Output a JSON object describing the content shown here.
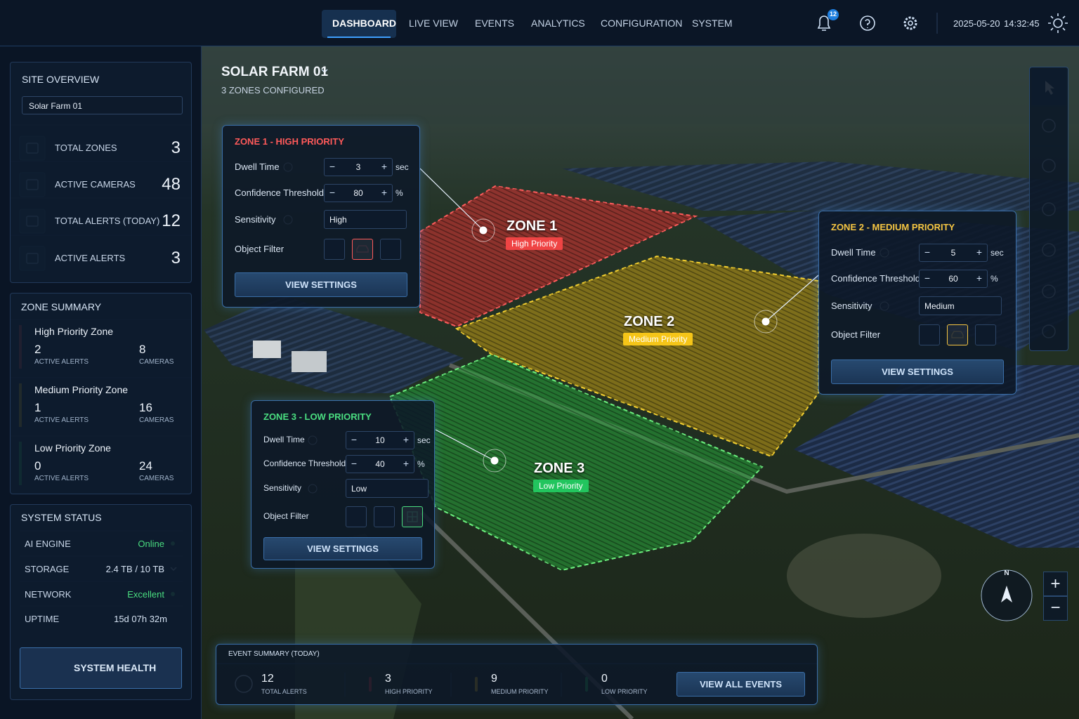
{
  "nav": {
    "items": [
      "DASHBOARD",
      "LIVE VIEW",
      "EVENTS",
      "ANALYTICS",
      "CONFIGURATION",
      "SYSTEM"
    ],
    "notifications": 12,
    "date": "2025-05-20",
    "time": "14:32:45"
  },
  "site_overview": {
    "title": "SITE OVERVIEW",
    "selected": "Solar Farm 01",
    "stats": [
      {
        "label": "TOTAL ZONES",
        "value": 3
      },
      {
        "label": "ACTIVE CAMERAS",
        "value": 48
      },
      {
        "label": "TOTAL ALERTS (TODAY)",
        "value": 12
      },
      {
        "label": "ACTIVE ALERTS",
        "value": 3
      }
    ]
  },
  "zone_summary": {
    "title": "ZONE SUMMARY",
    "zones": [
      {
        "name": "High Priority Zone",
        "color": "#ef4444",
        "alerts": 2,
        "alerts_label": "ACTIVE ALERTS",
        "cameras": 8,
        "cameras_label": "CAMERAS"
      },
      {
        "name": "Medium Priority Zone",
        "color": "#f5c518",
        "alerts": 1,
        "alerts_label": "ACTIVE ALERTS",
        "cameras": 16,
        "cameras_label": "CAMERAS"
      },
      {
        "name": "Low Priority Zone",
        "color": "#22c55e",
        "alerts": 0,
        "alerts_label": "ACTIVE ALERTS",
        "cameras": 24,
        "cameras_label": "CAMERAS"
      }
    ]
  },
  "system_status": {
    "title": "SYSTEM STATUS",
    "rows": [
      {
        "label": "AI ENGINE",
        "value": "Online"
      },
      {
        "label": "STORAGE",
        "value": "2.4 TB / 10 TB"
      },
      {
        "label": "NETWORK",
        "value": "Excellent"
      },
      {
        "label": "UPTIME",
        "value": "15d 07h 32m"
      }
    ],
    "button": "SYSTEM HEALTH"
  },
  "map": {
    "site": "SOLAR FARM 01",
    "subtitle": "3 ZONES CONFIGURED",
    "compass": "N",
    "zones": [
      {
        "label": "ZONE 1",
        "badge": "High Priority",
        "color": "#ef4444"
      },
      {
        "label": "ZONE 2",
        "badge": "Medium Priority",
        "color": "#f5c518"
      },
      {
        "label": "ZONE 3",
        "badge": "Low Priority",
        "color": "#22c55e"
      }
    ]
  },
  "zone_panels": [
    {
      "title": "ZONE 1 - HIGH PRIORITY",
      "color": "#ff5a5a",
      "dwell_label": "Dwell Time",
      "dwell": 3,
      "dwell_unit": "sec",
      "confidence_label": "Confidence Threshold",
      "confidence": 80,
      "confidence_unit": "%",
      "sensitivity_label": "Sensitivity",
      "sensitivity": "High",
      "filter_label": "Object Filter",
      "button": "VIEW SETTINGS"
    },
    {
      "title": "ZONE 2 - MEDIUM PRIORITY",
      "color": "#f5c542",
      "dwell_label": "Dwell Time",
      "dwell": 5,
      "dwell_unit": "sec",
      "confidence_label": "Confidence Threshold",
      "confidence": 60,
      "confidence_unit": "%",
      "sensitivity_label": "Sensitivity",
      "sensitivity": "Medium",
      "filter_label": "Object Filter",
      "button": "VIEW SETTINGS"
    },
    {
      "title": "ZONE 3 - LOW PRIORITY",
      "color": "#4ade80",
      "dwell_label": "Dwell Time",
      "dwell": 10,
      "dwell_unit": "sec",
      "confidence_label": "Confidence Threshold",
      "confidence": 40,
      "confidence_unit": "%",
      "sensitivity_label": "Sensitivity",
      "sensitivity": "Low",
      "filter_label": "Object Filter",
      "button": "VIEW SETTINGS"
    }
  ],
  "event_summary": {
    "title": "EVENT SUMMARY (TODAY)",
    "items": [
      {
        "value": 12,
        "label": "TOTAL ALERTS"
      },
      {
        "value": 3,
        "label": "HIGH PRIORITY"
      },
      {
        "value": 9,
        "label": "MEDIUM PRIORITY"
      },
      {
        "value": 0,
        "label": "LOW PRIORITY"
      }
    ],
    "button": "VIEW ALL EVENTS"
  }
}
